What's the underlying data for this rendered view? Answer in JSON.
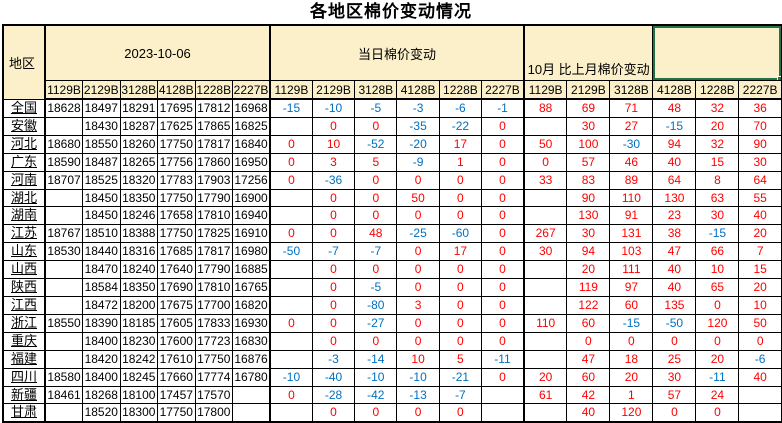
{
  "title": "各地区棉价变动情况",
  "colors": {
    "header_bg": "#FBF0C9",
    "positive": "#FF0000",
    "negative": "#0070C0",
    "selection_border": "#217346",
    "grid": "#000000"
  },
  "table": {
    "region_header": "地区",
    "groups": [
      {
        "label": "2023-10-06",
        "columns": [
          "1129B",
          "2129B",
          "3128B",
          "4128B",
          "1228B",
          "2227B"
        ]
      },
      {
        "label": "当日棉价变动",
        "columns": [
          "1129B",
          "2129B",
          "3128B",
          "4128B",
          "1228B",
          "2227B"
        ]
      },
      {
        "label": "10月 比上月棉价变动",
        "columns": [
          "1129B",
          "2129B",
          "3128B",
          "4128B",
          "1228B",
          "2227B"
        ]
      }
    ],
    "rows": [
      {
        "region": "全国",
        "prices": [
          "18628",
          "18497",
          "18291",
          "17695",
          "17812",
          "16968"
        ],
        "daily": [
          "-15",
          "-10",
          "-5",
          "-3",
          "-6",
          "-1"
        ],
        "monthly": [
          "88",
          "69",
          "71",
          "48",
          "32",
          "36"
        ]
      },
      {
        "region": "安徽",
        "prices": [
          "",
          "18430",
          "18287",
          "17625",
          "17865",
          "16825"
        ],
        "daily": [
          "",
          "0",
          "0",
          "-35",
          "-22",
          "0"
        ],
        "monthly": [
          "",
          "30",
          "27",
          "-15",
          "20",
          "70"
        ]
      },
      {
        "region": "河北",
        "prices": [
          "18680",
          "18550",
          "18260",
          "17750",
          "17817",
          "16840"
        ],
        "daily": [
          "0",
          "10",
          "-52",
          "-20",
          "17",
          "0"
        ],
        "monthly": [
          "50",
          "100",
          "-30",
          "94",
          "32",
          "90"
        ]
      },
      {
        "region": "广东",
        "prices": [
          "18590",
          "18487",
          "18265",
          "17756",
          "17860",
          "16950"
        ],
        "daily": [
          "0",
          "3",
          "5",
          "-9",
          "1",
          "0"
        ],
        "monthly": [
          "0",
          "57",
          "46",
          "40",
          "15",
          "30"
        ]
      },
      {
        "region": "河南",
        "prices": [
          "18707",
          "18525",
          "18320",
          "17783",
          "17903",
          "17256"
        ],
        "daily": [
          "0",
          "-36",
          "0",
          "0",
          "0",
          "0"
        ],
        "monthly": [
          "33",
          "83",
          "89",
          "64",
          "8",
          "64"
        ]
      },
      {
        "region": "湖北",
        "prices": [
          "",
          "18450",
          "18350",
          "17750",
          "17790",
          "16900"
        ],
        "daily": [
          "",
          "0",
          "0",
          "50",
          "0",
          "0"
        ],
        "monthly": [
          "",
          "90",
          "110",
          "130",
          "63",
          "55"
        ]
      },
      {
        "region": "湖南",
        "prices": [
          "",
          "18450",
          "18246",
          "17658",
          "17810",
          "16940"
        ],
        "daily": [
          "",
          "0",
          "0",
          "0",
          "0",
          "0"
        ],
        "monthly": [
          "",
          "130",
          "91",
          "23",
          "30",
          "40"
        ]
      },
      {
        "region": "江苏",
        "prices": [
          "18767",
          "18510",
          "18388",
          "17750",
          "17825",
          "16910"
        ],
        "daily": [
          "0",
          "0",
          "48",
          "-25",
          "-60",
          "0"
        ],
        "monthly": [
          "267",
          "30",
          "131",
          "38",
          "-15",
          "20"
        ]
      },
      {
        "region": "山东",
        "prices": [
          "18530",
          "18440",
          "18316",
          "17685",
          "17817",
          "16980"
        ],
        "daily": [
          "-50",
          "-7",
          "-7",
          "0",
          "17",
          "0"
        ],
        "monthly": [
          "30",
          "94",
          "103",
          "47",
          "66",
          "7"
        ]
      },
      {
        "region": "山西",
        "prices": [
          "",
          "18470",
          "18240",
          "17640",
          "17790",
          "16885"
        ],
        "daily": [
          "",
          "0",
          "0",
          "0",
          "0",
          "0"
        ],
        "monthly": [
          "",
          "20",
          "111",
          "40",
          "10",
          "15"
        ]
      },
      {
        "region": "陕西",
        "prices": [
          "",
          "18584",
          "18350",
          "17690",
          "17810",
          "16765"
        ],
        "daily": [
          "",
          "0",
          "-5",
          "0",
          "0",
          "0"
        ],
        "monthly": [
          "",
          "119",
          "97",
          "40",
          "65",
          "20"
        ]
      },
      {
        "region": "江西",
        "prices": [
          "",
          "18472",
          "18200",
          "17675",
          "17700",
          "16820"
        ],
        "daily": [
          "",
          "0",
          "-80",
          "3",
          "0",
          "0"
        ],
        "monthly": [
          "",
          "122",
          "60",
          "135",
          "0",
          "10"
        ]
      },
      {
        "region": "浙江",
        "prices": [
          "18550",
          "18390",
          "18185",
          "17605",
          "17833",
          "16930"
        ],
        "daily": [
          "0",
          "0",
          "-27",
          "0",
          "0",
          "0"
        ],
        "monthly": [
          "110",
          "60",
          "-15",
          "-50",
          "120",
          "50"
        ]
      },
      {
        "region": "重庆",
        "prices": [
          "",
          "18400",
          "18230",
          "17600",
          "17723",
          "16830"
        ],
        "daily": [
          "",
          "0",
          "0",
          "0",
          "0",
          "0"
        ],
        "monthly": [
          "",
          "0",
          "0",
          "0",
          "0",
          "0"
        ]
      },
      {
        "region": "福建",
        "prices": [
          "",
          "18420",
          "18242",
          "17610",
          "17750",
          "16876"
        ],
        "daily": [
          "",
          "-3",
          "-14",
          "10",
          "5",
          "-11"
        ],
        "monthly": [
          "",
          "47",
          "18",
          "25",
          "20",
          "-6"
        ]
      },
      {
        "region": "四川",
        "prices": [
          "18580",
          "18400",
          "18245",
          "17660",
          "17774",
          "16780"
        ],
        "daily": [
          "-10",
          "-40",
          "-10",
          "-10",
          "-21",
          "0"
        ],
        "monthly": [
          "20",
          "60",
          "20",
          "30",
          "-11",
          "40"
        ]
      },
      {
        "region": "新疆",
        "prices": [
          "18461",
          "18268",
          "18100",
          "17457",
          "17570",
          ""
        ],
        "daily": [
          "0",
          "-28",
          "-42",
          "-13",
          "-7",
          ""
        ],
        "monthly": [
          "61",
          "42",
          "1",
          "57",
          "24",
          ""
        ]
      },
      {
        "region": "甘肃",
        "prices": [
          "",
          "18520",
          "18300",
          "17750",
          "17800",
          ""
        ],
        "daily": [
          "",
          "0",
          "0",
          "0",
          "0",
          ""
        ],
        "monthly": [
          "",
          "40",
          "120",
          "0",
          "0",
          ""
        ]
      }
    ]
  }
}
